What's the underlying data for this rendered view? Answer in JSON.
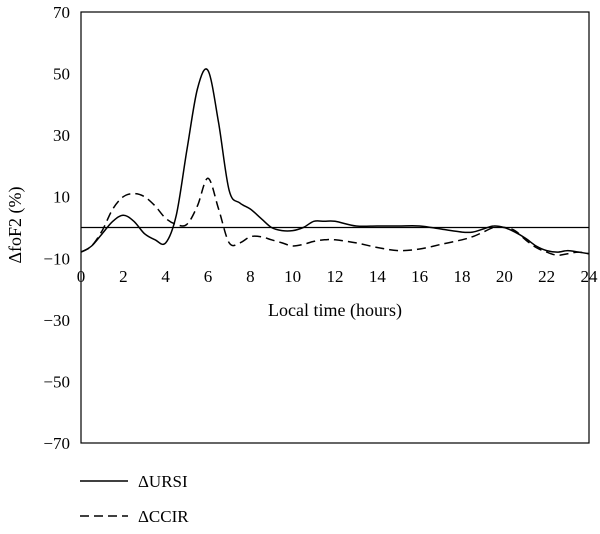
{
  "chart_data": {
    "type": "line",
    "xlabel": "Local time (hours)",
    "ylabel": "ΔfoF2 (%)",
    "xlim": [
      0,
      24
    ],
    "ylim": [
      -70,
      70
    ],
    "xticks": [
      "0",
      "2",
      "4",
      "6",
      "8",
      "10",
      "12",
      "14",
      "16",
      "18",
      "20",
      "22",
      "24"
    ],
    "yticks": [
      "70",
      "50",
      "30",
      "10",
      "−10",
      "−30",
      "−50",
      "−70"
    ],
    "reference_line": 0,
    "grid": false,
    "legend_position": "bottom-left",
    "series": [
      {
        "name": "ΔURSI",
        "style": "solid",
        "x": [
          0,
          0.5,
          1,
          1.5,
          2,
          2.5,
          3,
          3.5,
          4,
          4.5,
          5,
          5.5,
          6,
          6.5,
          7,
          7.5,
          8,
          8.5,
          9,
          9.5,
          10,
          10.5,
          11,
          11.5,
          12,
          13,
          14,
          15,
          16,
          17,
          18,
          18.5,
          19,
          19.5,
          20,
          20.5,
          21,
          21.5,
          22,
          22.5,
          23,
          23.5,
          24
        ],
        "y": [
          -8,
          -6,
          -2,
          2,
          4,
          2,
          -2,
          -4,
          -5,
          4,
          25,
          45,
          51,
          34,
          12,
          8,
          6,
          3,
          0,
          -1,
          -1,
          0,
          2,
          2,
          2,
          0.5,
          0.5,
          0.5,
          0.5,
          -0.5,
          -1.5,
          -1.5,
          -0.5,
          0.5,
          0,
          -1.5,
          -3.5,
          -6,
          -7.5,
          -8,
          -7.5,
          -8,
          -8.5
        ]
      },
      {
        "name": "ΔCCIR",
        "style": "dashed",
        "x": [
          0,
          0.5,
          1,
          1.5,
          2,
          2.5,
          3,
          3.5,
          4,
          4.5,
          5,
          5.5,
          6,
          6.5,
          7,
          7.5,
          8,
          8.5,
          9,
          9.5,
          10,
          10.5,
          11,
          11.5,
          12,
          13,
          14,
          15,
          16,
          17,
          18,
          18.5,
          19,
          19.5,
          20,
          20.5,
          21,
          21.5,
          22,
          22.5,
          23,
          23.5,
          24
        ],
        "y": [
          -8,
          -6,
          -1,
          6,
          10,
          11,
          10,
          7,
          3,
          1,
          1,
          7,
          16,
          6,
          -5,
          -5,
          -3,
          -3,
          -4,
          -5,
          -6,
          -5.5,
          -4.5,
          -4,
          -4,
          -5,
          -6.5,
          -7.5,
          -7,
          -5.5,
          -4,
          -3,
          -1.5,
          0,
          0,
          -1,
          -4,
          -6.5,
          -8,
          -9,
          -8.5,
          -8,
          -8.5
        ]
      }
    ]
  }
}
